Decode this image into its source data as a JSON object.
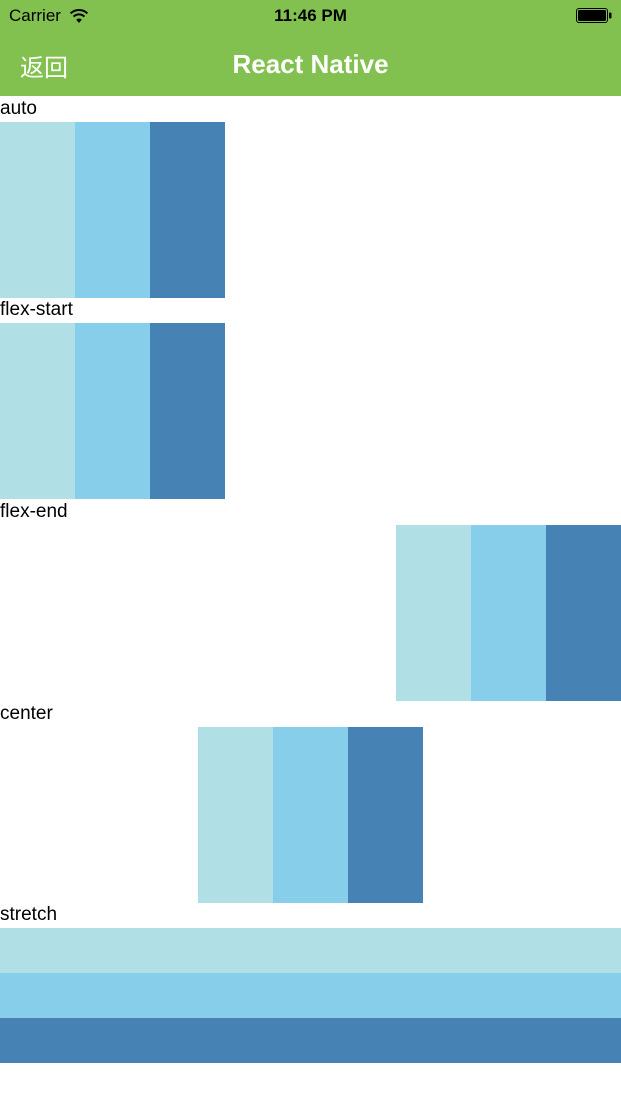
{
  "status_bar": {
    "carrier": "Carrier",
    "time": "11:46 PM",
    "wifi_icon": "wifi-icon",
    "battery_icon": "battery-full-icon"
  },
  "nav": {
    "back_label": "返回",
    "title": "React Native",
    "background_color": "#82c150"
  },
  "colors": {
    "powder_blue": "#b0e0e6",
    "sky_blue": "#87ceeb",
    "steel_blue": "#4682b4"
  },
  "sections": [
    {
      "label": "auto"
    },
    {
      "label": "flex-start"
    },
    {
      "label": "flex-end"
    },
    {
      "label": "center"
    },
    {
      "label": "stretch"
    }
  ]
}
